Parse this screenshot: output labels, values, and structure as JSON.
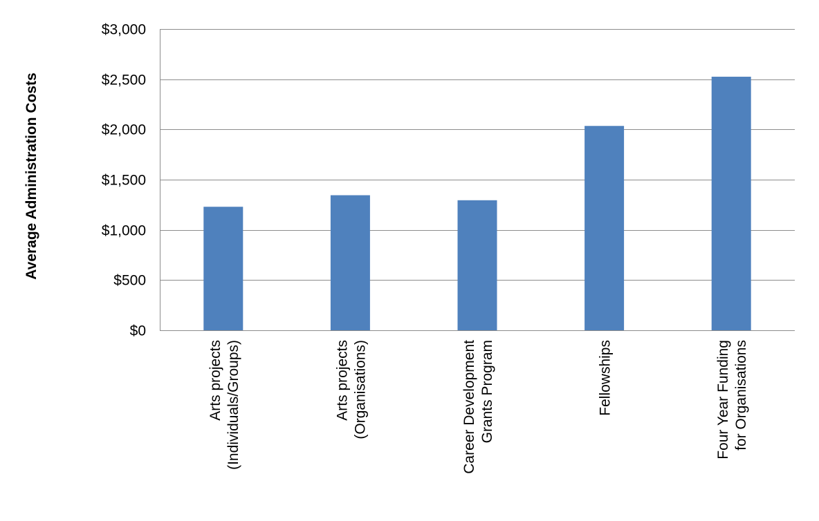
{
  "chart_data": {
    "type": "bar",
    "title": "",
    "xlabel": "",
    "ylabel": "Average  Administration Costs",
    "categories": [
      [
        "Arts projects",
        "(Individuals/Groups)"
      ],
      [
        "Arts projects",
        "(Organisations)"
      ],
      [
        "Career Development",
        "Grants Program"
      ],
      [
        "Fellowships"
      ],
      [
        "Four Year Funding",
        "for Organisations"
      ]
    ],
    "values": [
      1230,
      1345,
      1295,
      2035,
      2525
    ],
    "ylim": [
      0,
      3000
    ],
    "yticks": [
      0,
      500,
      1000,
      1500,
      2000,
      2500,
      3000
    ],
    "ytick_labels": [
      "$0",
      "$500",
      "$1,000",
      "$1,500",
      "$2,000",
      "$2,500",
      "$3,000"
    ],
    "grid": true,
    "legend": "none",
    "colors": {
      "bar": "#4f81bd",
      "grid": "#8c8c8c",
      "axis": "#8c8c8c"
    }
  }
}
